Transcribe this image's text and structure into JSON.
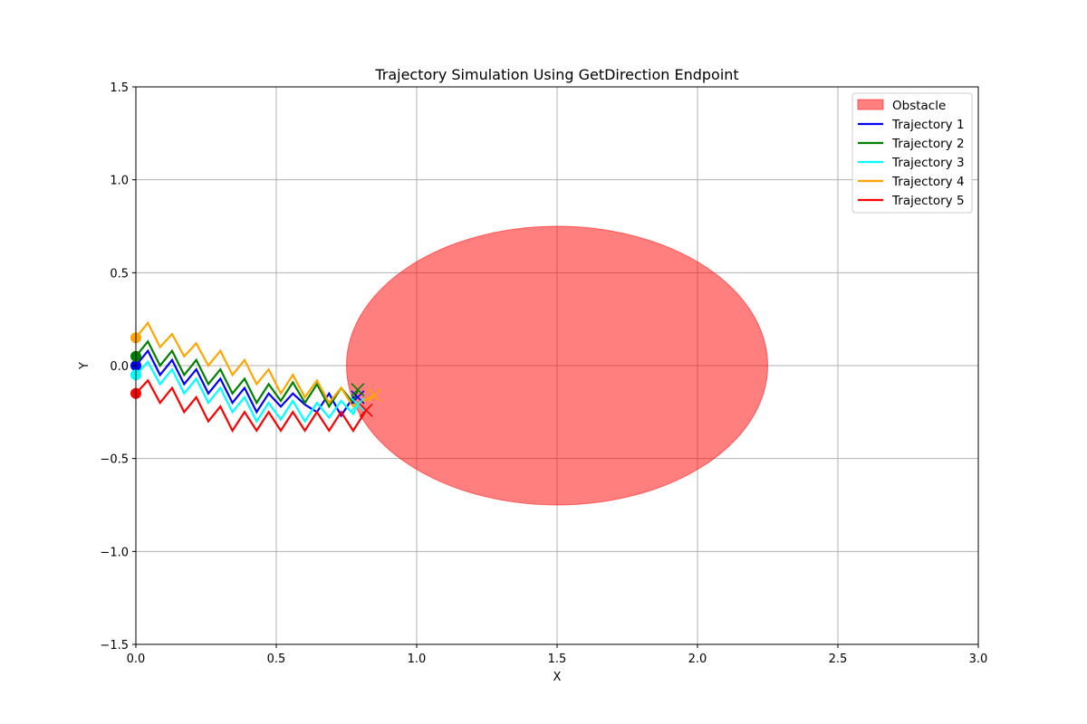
{
  "chart_data": {
    "type": "line",
    "title": "Trajectory Simulation Using GetDirection Endpoint",
    "xlabel": "X",
    "ylabel": "Y",
    "xlim": [
      0,
      3
    ],
    "ylim": [
      -1.5,
      1.5
    ],
    "grid": true,
    "legend_placement": "top-right",
    "x_ticks": [
      0,
      0.5,
      1,
      1.5,
      2,
      2.5,
      3
    ],
    "x_tick_labels": [
      "0.0",
      "0.5",
      "1.0",
      "1.5",
      "2.0",
      "2.5",
      "3.0"
    ],
    "y_ticks": [
      -1.5,
      -1,
      -0.5,
      0,
      0.5,
      1,
      1.5
    ],
    "y_tick_labels": [
      "−1.5",
      "−1.0",
      "−0.5",
      "0.0",
      "0.5",
      "1.0",
      "1.5"
    ],
    "obstacle": {
      "name": "Obstacle",
      "shape": "ellipse",
      "center": [
        1.5,
        0
      ],
      "x_radius": 0.75,
      "y_radius": 0.75,
      "color": "#ff0000",
      "opacity": 0.5
    },
    "series": [
      {
        "name": "Trajectory 1",
        "color": "#0000ff",
        "start": [
          0,
          0
        ],
        "end": [
          0.79,
          -0.17
        ],
        "x": [
          0,
          0.043,
          0.086,
          0.129,
          0.172,
          0.215,
          0.258,
          0.301,
          0.344,
          0.387,
          0.43,
          0.473,
          0.516,
          0.559,
          0.602,
          0.645,
          0.688,
          0.731,
          0.774,
          0.79
        ],
        "y": [
          0,
          0.08,
          -0.05,
          0.03,
          -0.1,
          -0.02,
          -0.15,
          -0.07,
          -0.2,
          -0.12,
          -0.25,
          -0.15,
          -0.22,
          -0.15,
          -0.21,
          -0.25,
          -0.15,
          -0.27,
          -0.17,
          -0.17
        ]
      },
      {
        "name": "Trajectory 2",
        "color": "#008000",
        "start": [
          0,
          0.05
        ],
        "end": [
          0.79,
          -0.13
        ],
        "x": [
          0,
          0.043,
          0.086,
          0.129,
          0.172,
          0.215,
          0.258,
          0.301,
          0.344,
          0.387,
          0.43,
          0.473,
          0.516,
          0.559,
          0.602,
          0.645,
          0.688,
          0.731,
          0.774,
          0.79
        ],
        "y": [
          0.05,
          0.13,
          0,
          0.08,
          -0.05,
          0.03,
          -0.1,
          -0.02,
          -0.15,
          -0.07,
          -0.2,
          -0.1,
          -0.19,
          -0.09,
          -0.2,
          -0.1,
          -0.22,
          -0.12,
          -0.2,
          -0.13
        ]
      },
      {
        "name": "Trajectory 3",
        "color": "#00ffff",
        "start": [
          0,
          -0.05
        ],
        "end": [
          0.79,
          -0.21
        ],
        "x": [
          0,
          0.043,
          0.086,
          0.129,
          0.172,
          0.215,
          0.258,
          0.301,
          0.344,
          0.387,
          0.43,
          0.473,
          0.516,
          0.559,
          0.602,
          0.645,
          0.688,
          0.731,
          0.774,
          0.79
        ],
        "y": [
          -0.05,
          0.02,
          -0.1,
          -0.02,
          -0.15,
          -0.07,
          -0.2,
          -0.12,
          -0.25,
          -0.17,
          -0.3,
          -0.2,
          -0.29,
          -0.19,
          -0.3,
          -0.2,
          -0.28,
          -0.19,
          -0.26,
          -0.21
        ]
      },
      {
        "name": "Trajectory 4",
        "color": "#ffa500",
        "start": [
          0,
          0.15
        ],
        "end": [
          0.85,
          -0.16
        ],
        "x": [
          0,
          0.043,
          0.086,
          0.129,
          0.172,
          0.215,
          0.258,
          0.301,
          0.344,
          0.387,
          0.43,
          0.473,
          0.516,
          0.559,
          0.602,
          0.645,
          0.688,
          0.731,
          0.774,
          0.81,
          0.85
        ],
        "y": [
          0.15,
          0.23,
          0.1,
          0.17,
          0.05,
          0.12,
          0,
          0.08,
          -0.05,
          0.03,
          -0.1,
          -0.02,
          -0.15,
          -0.05,
          -0.17,
          -0.08,
          -0.2,
          -0.12,
          -0.22,
          -0.19,
          -0.16
        ]
      },
      {
        "name": "Trajectory 5",
        "color": "#ff0000",
        "start": [
          0,
          -0.15
        ],
        "end": [
          0.82,
          -0.24
        ],
        "x": [
          0,
          0.043,
          0.086,
          0.129,
          0.172,
          0.215,
          0.258,
          0.301,
          0.344,
          0.387,
          0.43,
          0.473,
          0.516,
          0.559,
          0.602,
          0.645,
          0.688,
          0.731,
          0.774,
          0.82
        ],
        "y": [
          -0.15,
          -0.08,
          -0.2,
          -0.12,
          -0.25,
          -0.17,
          -0.3,
          -0.22,
          -0.35,
          -0.25,
          -0.35,
          -0.25,
          -0.35,
          -0.25,
          -0.35,
          -0.25,
          -0.35,
          -0.25,
          -0.35,
          -0.24
        ]
      }
    ]
  }
}
